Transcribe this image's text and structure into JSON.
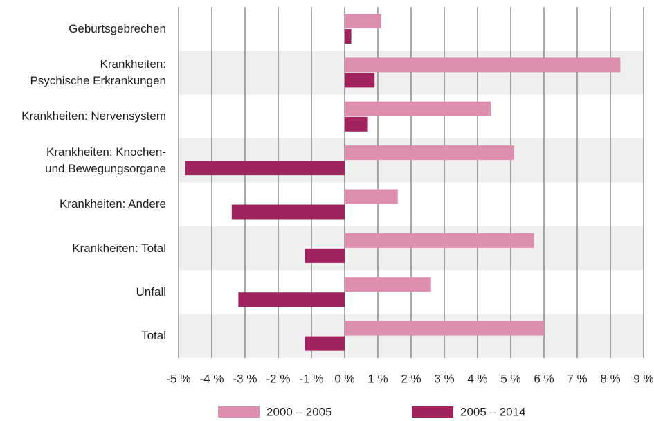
{
  "chart_data": {
    "type": "barh",
    "categories": [
      "Geburtsgebrechen",
      "Krankheiten:\nPsychische Erkrankungen",
      "Krankheiten: Nervensystem",
      "Krankheiten: Knochen-\nund Bewegungsorgane",
      "Krankheiten: Andere",
      "Krankheiten: Total",
      "Unfall",
      "Total"
    ],
    "series": [
      {
        "name": "2000 – 2005",
        "color": "#de8fb0",
        "values": [
          1.1,
          8.3,
          4.4,
          5.1,
          1.6,
          5.7,
          2.6,
          6.0
        ]
      },
      {
        "name": "2005 – 2014",
        "color": "#a0235e",
        "values": [
          0.2,
          0.9,
          0.7,
          -4.8,
          -3.4,
          -1.2,
          -3.2,
          -1.2
        ]
      }
    ],
    "xlim": [
      -5,
      9
    ],
    "xticks": [
      {
        "value": -5,
        "label": "-5 %"
      },
      {
        "value": -4,
        "label": "-4 %"
      },
      {
        "value": -3,
        "label": "-3 %"
      },
      {
        "value": -2,
        "label": "-2 %"
      },
      {
        "value": -1,
        "label": "-1 %"
      },
      {
        "value": 0,
        "label": "0 %"
      },
      {
        "value": 1,
        "label": "1 %"
      },
      {
        "value": 2,
        "label": "2 %"
      },
      {
        "value": 3,
        "label": "3 %"
      },
      {
        "value": 4,
        "label": "4 %"
      },
      {
        "value": 5,
        "label": "5 %"
      },
      {
        "value": 6,
        "label": "6 %"
      },
      {
        "value": 7,
        "label": "7 %"
      },
      {
        "value": 8,
        "label": "8 %"
      },
      {
        "value": 9,
        "label": "9 %"
      }
    ],
    "grid": true
  }
}
